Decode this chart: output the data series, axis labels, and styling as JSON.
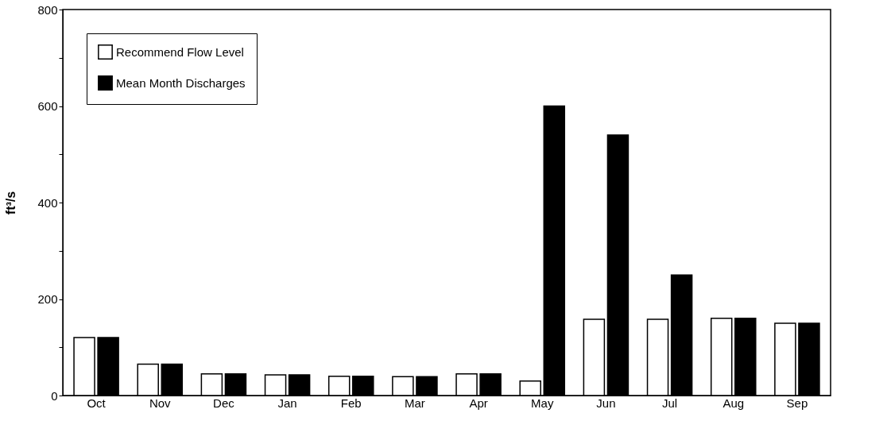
{
  "chart_data": {
    "type": "bar",
    "ylabel": "ft³/s",
    "categories": [
      "Oct",
      "Nov",
      "Dec",
      "Jan",
      "Feb",
      "Mar",
      "Apr",
      "May",
      "Jun",
      "Jul",
      "Aug",
      "Sep"
    ],
    "series": [
      {
        "name": "Recommend Flow Level",
        "color": "#ffffff",
        "values": [
          120,
          65,
          45,
          43,
          40,
          39,
          45,
          30,
          158,
          158,
          160,
          150
        ]
      },
      {
        "name": "Mean Month Discharges",
        "color": "#000000",
        "values": [
          120,
          65,
          45,
          43,
          40,
          39,
          45,
          600,
          540,
          250,
          160,
          150
        ]
      }
    ],
    "ylim": [
      0,
      800
    ],
    "yticks": [
      0,
      {
        "value": 100,
        "label": null
      },
      200,
      {
        "value": 300,
        "label": null
      },
      400,
      {
        "value": 500,
        "label": null
      },
      600,
      {
        "value": 700,
        "label": null
      },
      800
    ],
    "grid": false,
    "legend": "top left"
  }
}
